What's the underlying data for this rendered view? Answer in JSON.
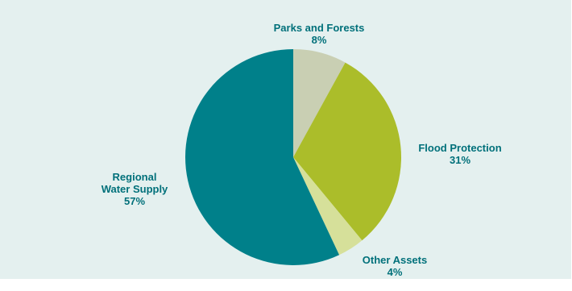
{
  "chart_data": {
    "type": "pie",
    "slices": [
      {
        "name_lines": [
          "Parks and Forests"
        ],
        "value": 8,
        "value_label": "8%",
        "color": "#c9cfb3"
      },
      {
        "name_lines": [
          "Flood Protection"
        ],
        "value": 31,
        "value_label": "31%",
        "color": "#abbd2a"
      },
      {
        "name_lines": [
          "Other Assets"
        ],
        "value": 4,
        "value_label": "4%",
        "color": "#d6e09a"
      },
      {
        "name_lines": [
          "Regional",
          "Water Supply"
        ],
        "value": 57,
        "value_label": "57%",
        "color": "#00808a"
      }
    ]
  },
  "colors": {
    "background": "#e4f0ef",
    "label_text": "#00707a"
  }
}
